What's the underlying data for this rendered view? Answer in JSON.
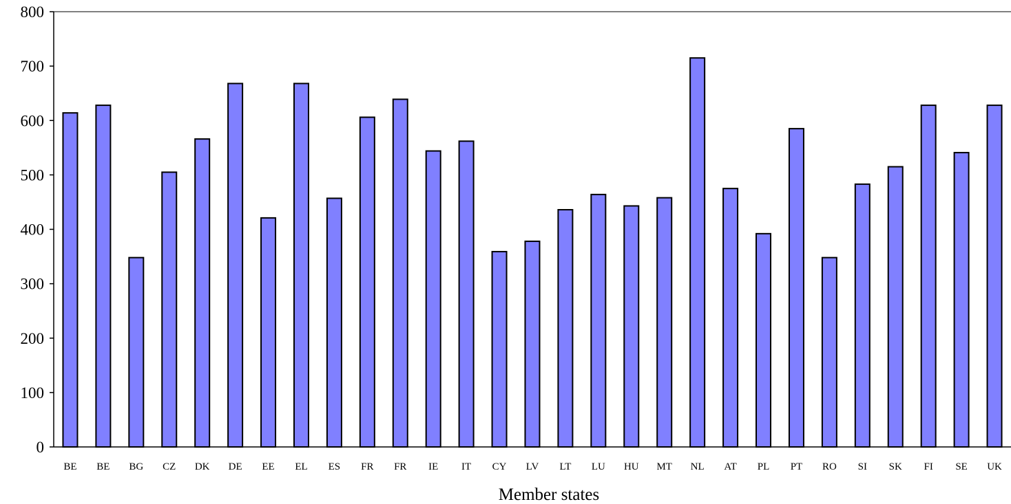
{
  "chart_data": {
    "type": "bar",
    "xlabel": "Member states",
    "ylabel": "",
    "ylim": [
      0,
      800
    ],
    "yticks": [
      0,
      100,
      200,
      300,
      400,
      500,
      600,
      700,
      800
    ],
    "grid": false,
    "categories": [
      "BE",
      "BE",
      "BG",
      "CZ",
      "DK",
      "DE",
      "EE",
      "EL",
      "ES",
      "FR",
      "FR",
      "IE",
      "IT",
      "CY",
      "LV",
      "LT",
      "LU",
      "HU",
      "MT",
      "NL",
      "AT",
      "PL",
      "PT",
      "RO",
      "SI",
      "SK",
      "FI",
      "SE",
      "UK"
    ],
    "values": [
      614,
      628,
      348,
      505,
      566,
      668,
      421,
      668,
      457,
      606,
      639,
      544,
      562,
      359,
      378,
      436,
      464,
      443,
      458,
      715,
      475,
      392,
      585,
      348,
      483,
      515,
      628,
      541,
      628
    ],
    "colors": {
      "bar_fill": "#8080ff",
      "bar_stroke": "#000000",
      "axis": "#000000",
      "top_line": "#808080"
    }
  }
}
